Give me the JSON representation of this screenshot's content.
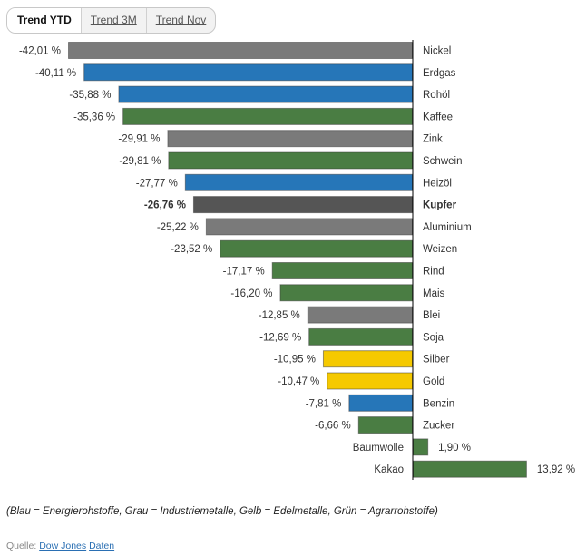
{
  "tabs": [
    {
      "label": "Trend YTD",
      "active": true
    },
    {
      "label": "Trend 3M",
      "active": false
    },
    {
      "label": "Trend Nov",
      "active": false
    }
  ],
  "chart_data": {
    "type": "bar",
    "orientation": "horizontal",
    "categories": [
      "Nickel",
      "Erdgas",
      "Rohöl",
      "Kaffee",
      "Zink",
      "Schwein",
      "Heizöl",
      "Kupfer",
      "Aluminium",
      "Weizen",
      "Rind",
      "Mais",
      "Blei",
      "Soja",
      "Silber",
      "Gold",
      "Benzin",
      "Zucker",
      "Baumwolle",
      "Kakao"
    ],
    "values": [
      -42.01,
      -40.11,
      -35.88,
      -35.36,
      -29.91,
      -29.81,
      -27.77,
      -26.76,
      -25.22,
      -23.52,
      -17.17,
      -16.2,
      -12.85,
      -12.69,
      -10.95,
      -10.47,
      -7.81,
      -6.66,
      1.9,
      13.92
    ],
    "value_labels": [
      "-42,01 %",
      "-40,11 %",
      "-35,88 %",
      "-35,36 %",
      "-29,91 %",
      "-29,81 %",
      "-27,77 %",
      "-26,76 %",
      "-25,22 %",
      "-23,52 %",
      "-17,17 %",
      "-16,20 %",
      "-12,85 %",
      "-12,69 %",
      "-10,95 %",
      "-10,47 %",
      "-7,81 %",
      "-6,66 %",
      "1,90 %",
      "13,92 %"
    ],
    "groups": [
      "grau",
      "blau",
      "blau",
      "gruen",
      "grau",
      "gruen",
      "blau",
      "highlight",
      "grau",
      "gruen",
      "gruen",
      "gruen",
      "grau",
      "gruen",
      "gelb",
      "gelb",
      "blau",
      "gruen",
      "gruen",
      "gruen"
    ],
    "highlight": "Kupfer",
    "colors": {
      "grau": "#7a7a7a",
      "blau": "#2676b8",
      "gruen": "#4a7d43",
      "gelb": "#f5c900",
      "highlight": "#555555"
    },
    "xlim": [
      -42.01,
      13.92
    ]
  },
  "legend_text": "(Blau = Energierohstoffe, Grau = Industriemetalle, Gelb = Edelmetalle, Grün = Agrarrohstoffe)",
  "source": {
    "label": "Quelle:",
    "link1": "Dow Jones",
    "link2": "Daten"
  }
}
